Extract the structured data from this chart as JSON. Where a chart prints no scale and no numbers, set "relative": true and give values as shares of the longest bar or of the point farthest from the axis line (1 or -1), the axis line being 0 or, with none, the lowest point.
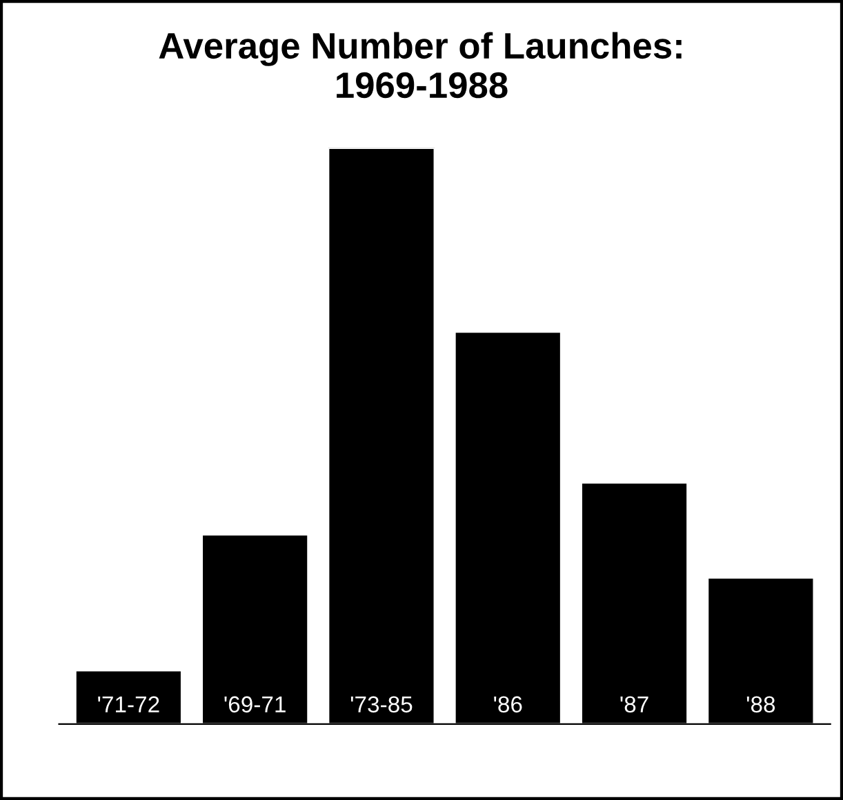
{
  "chart_data": {
    "type": "bar",
    "title": "Average Number of Launches:\n1969-1988",
    "relative": true,
    "categories": [
      "'71-72",
      "'69-71",
      "'73-85",
      "'86",
      "'87",
      "'88"
    ],
    "values": [
      0.093,
      0.329,
      1,
      0.681,
      0.419,
      0.254
    ],
    "color": "#000000"
  }
}
